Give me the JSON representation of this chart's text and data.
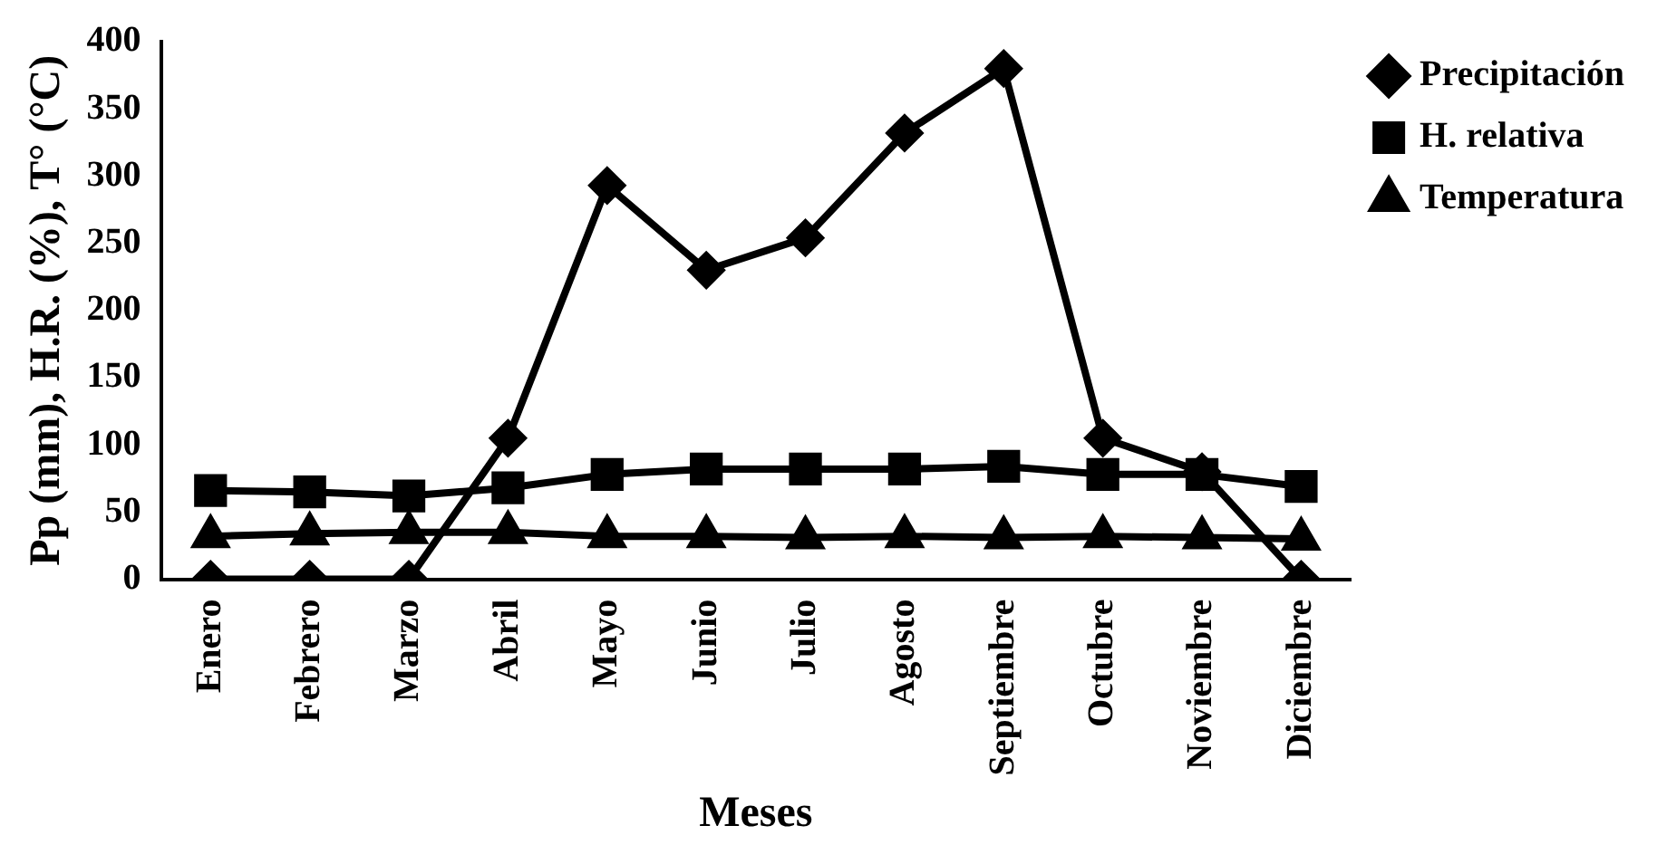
{
  "chart_data": {
    "type": "line",
    "xlabel": "Meses",
    "ylabel": "Pp (mm), H.R. (%), T° (°C)",
    "categories": [
      "Enero",
      "Febrero",
      "Marzo",
      "Abril",
      "Mayo",
      "Junio",
      "Julio",
      "Agosto",
      "Septiembre",
      "Octubre",
      "Noviembre",
      "Diciembre"
    ],
    "series": [
      {
        "name": "Precipitación",
        "color": "#000000",
        "marker": "diamond",
        "values": [
          0,
          0,
          0,
          105,
          293,
          230,
          254,
          332,
          380,
          105,
          80,
          0
        ]
      },
      {
        "name": "H. relativa",
        "color": "#000000",
        "marker": "square",
        "values": [
          66,
          65,
          62,
          68,
          78,
          82,
          82,
          82,
          84,
          78,
          78,
          69
        ]
      },
      {
        "name": "Temperatura",
        "color": "#000000",
        "marker": "triangle",
        "values": [
          32,
          34,
          35,
          35,
          32,
          32,
          31,
          32,
          31,
          32,
          31,
          30
        ]
      }
    ],
    "ylim": [
      0,
      400
    ],
    "yticks": [
      0,
      50,
      100,
      150,
      200,
      250,
      300,
      350,
      400
    ],
    "grid": false,
    "legend": "right",
    "line_style": "solid"
  }
}
